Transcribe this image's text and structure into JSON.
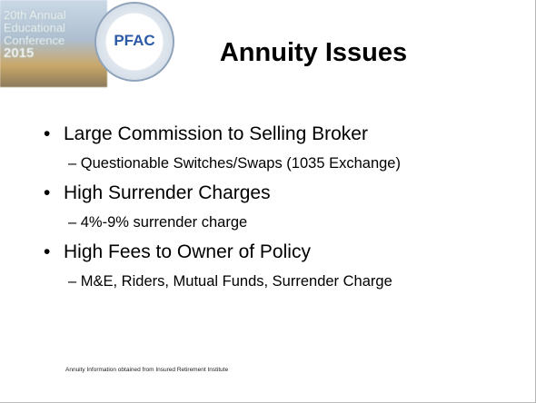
{
  "header": {
    "logo_lines": [
      "20th Annual",
      "Educational",
      "Conference",
      "2015"
    ],
    "badge": "PFAC",
    "title": "Annuity Issues"
  },
  "bullets": [
    {
      "text": "Large Commission to Selling Broker",
      "sub": "– Questionable Switches/Swaps (1035 Exchange)"
    },
    {
      "text": "High Surrender Charges",
      "sub": "– 4%-9% surrender charge"
    },
    {
      "text": "High Fees to Owner of Policy",
      "sub": "– M&E, Riders, Mutual Funds, Surrender Charge"
    }
  ],
  "footnote": "Annuity Information obtained from Insured Retirement Institute"
}
